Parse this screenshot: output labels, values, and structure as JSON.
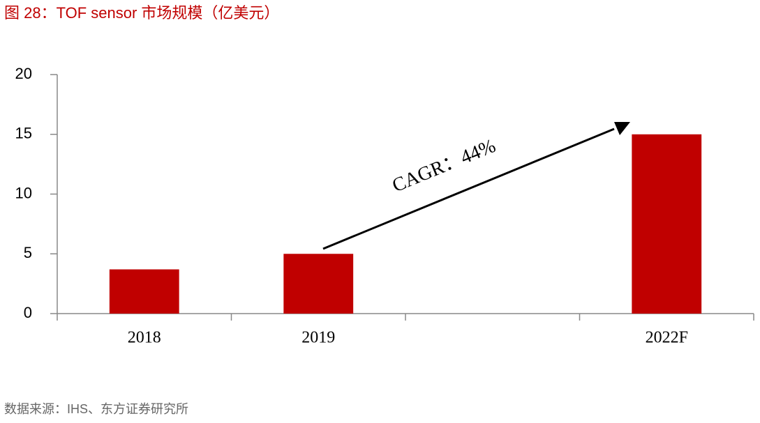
{
  "chart_data": {
    "type": "bar",
    "title": "图 28：TOF sensor 市场规模（亿美元）",
    "categories": [
      "2018",
      "2019",
      null,
      "2022F"
    ],
    "values": [
      3.7,
      5,
      null,
      15
    ],
    "color": "#c00000",
    "ylim": [
      0,
      20
    ],
    "yticks": [
      0,
      5,
      10,
      15,
      20
    ],
    "annotation": "CAGR：44%",
    "source": "数据来源：IHS、东方证券研究所"
  }
}
